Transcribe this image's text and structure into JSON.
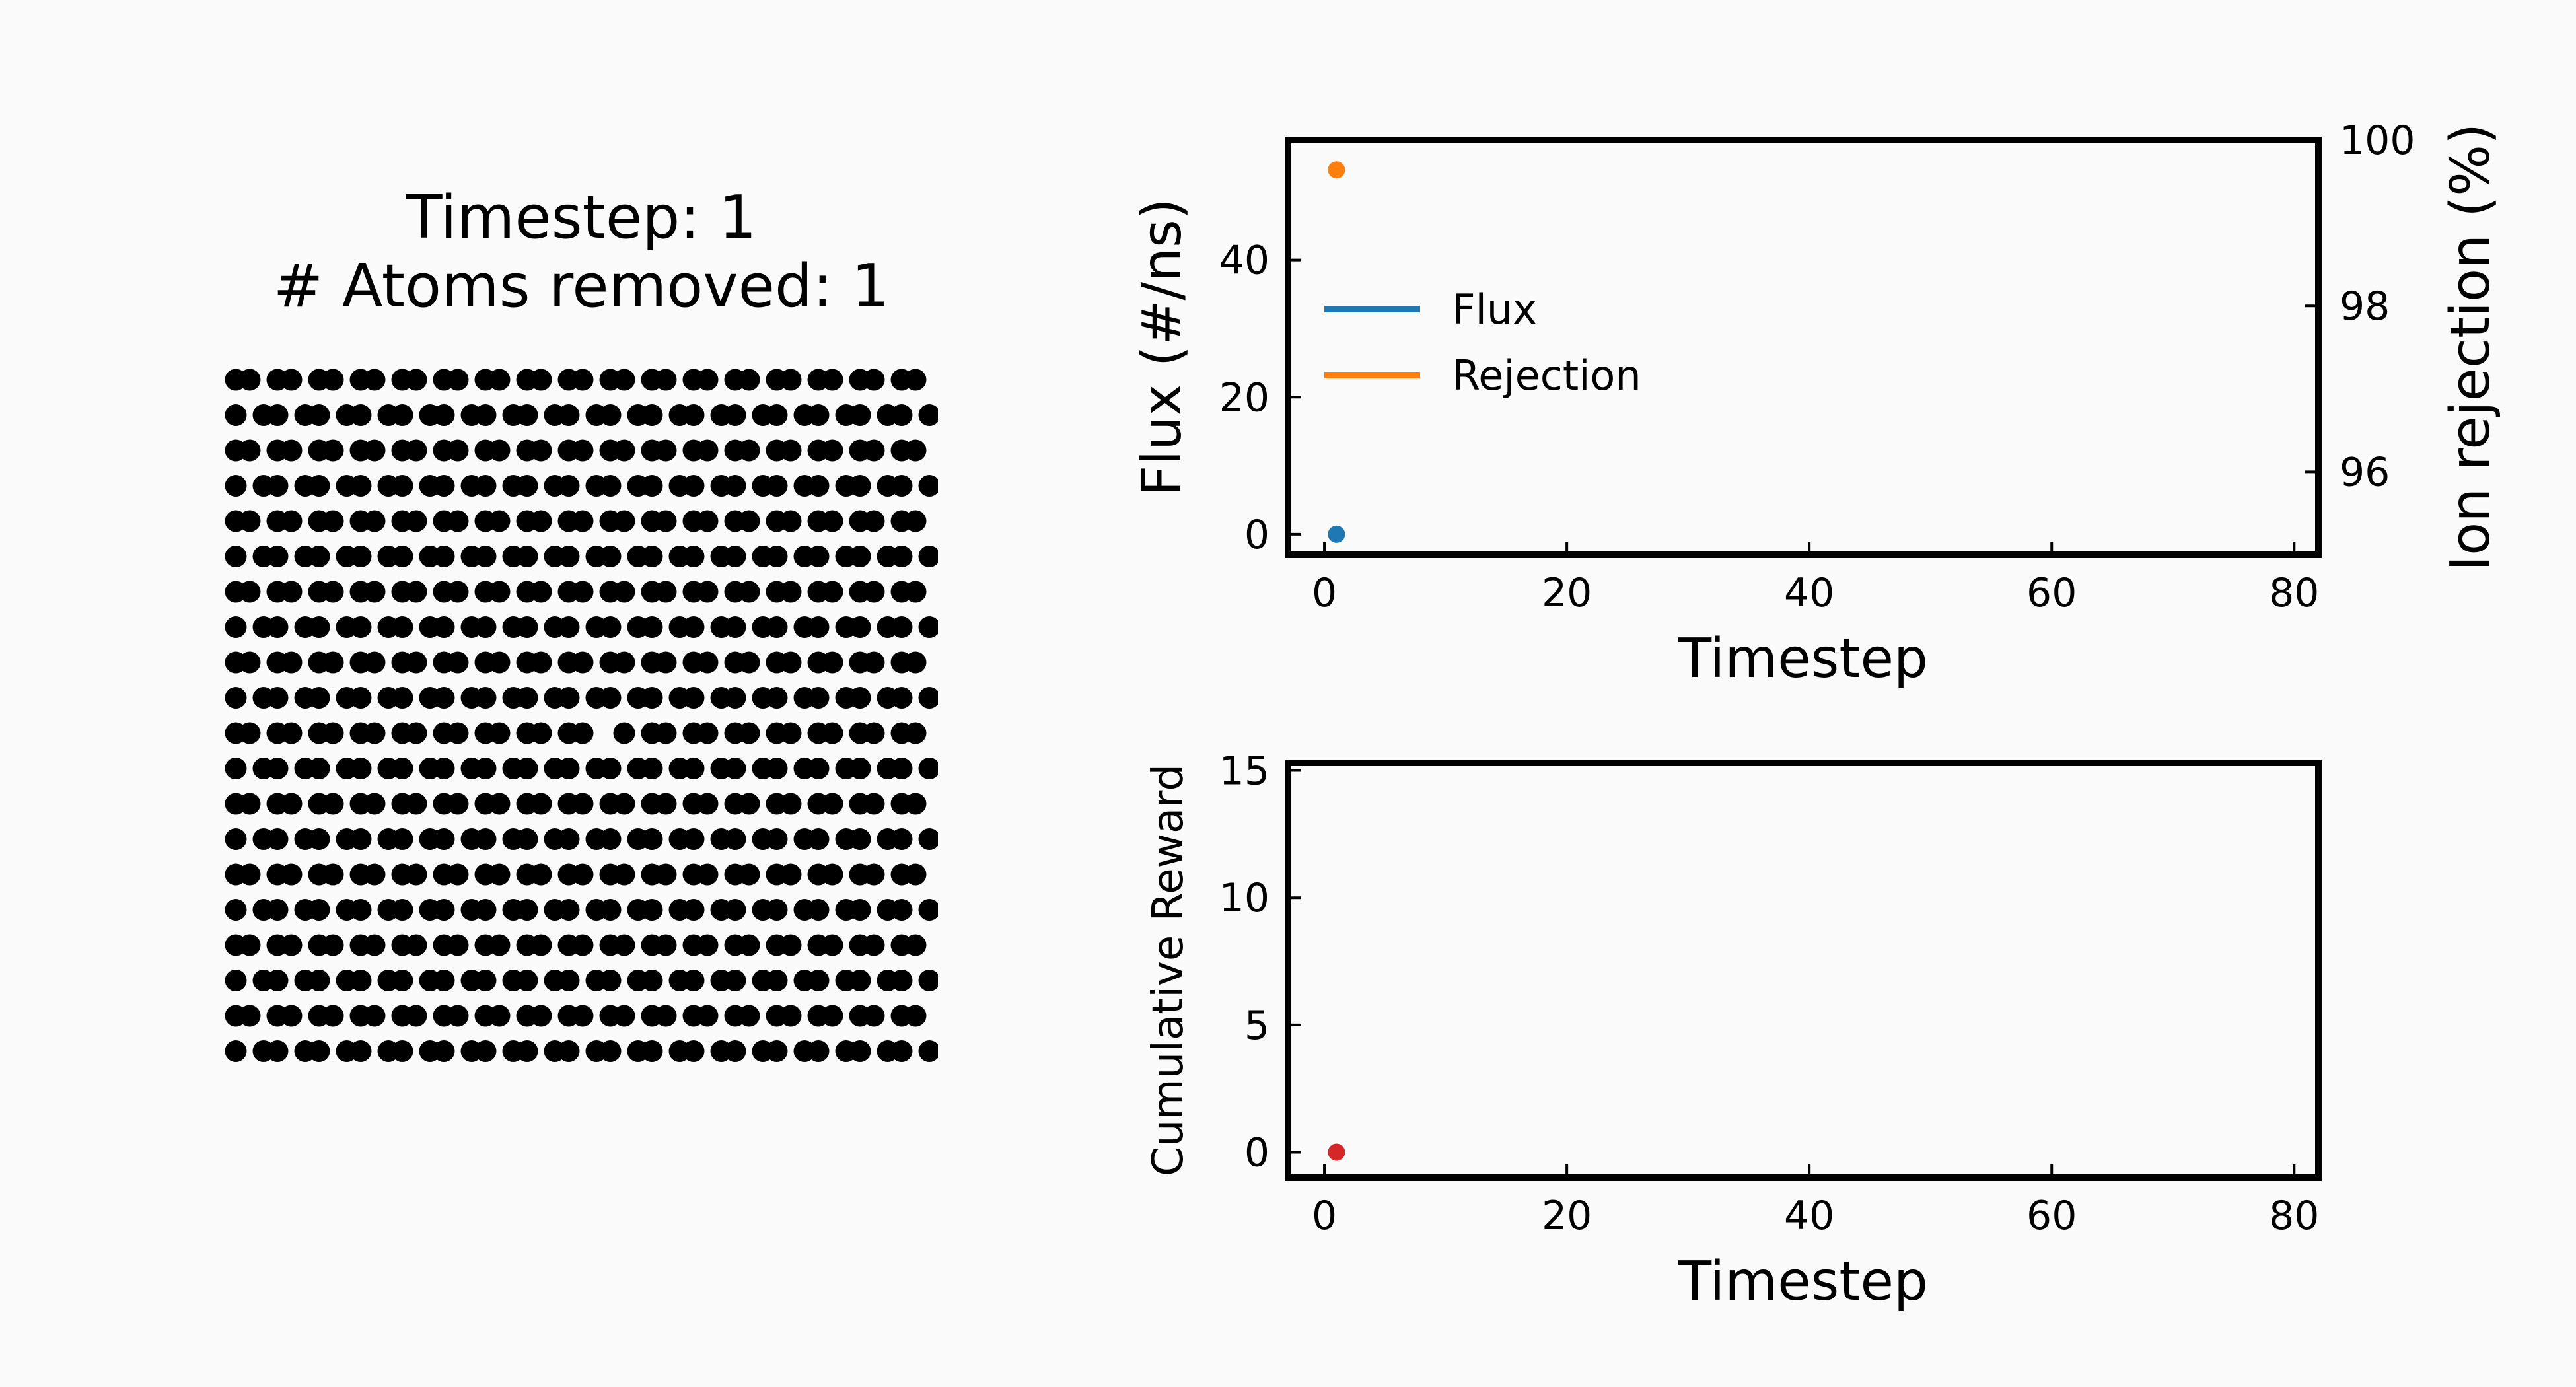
{
  "lattice": {
    "title_line1": "Timestep: 1",
    "title_line2": "# Atoms removed: 1",
    "atom_color": "#000000"
  },
  "chart_data": [
    {
      "type": "scatter",
      "title": "",
      "xlabel": "Timestep",
      "ylabel": "Flux (#/ns)",
      "y2label": "Ion rejection (%)",
      "xlim": [
        -3,
        82
      ],
      "ylim": [
        -3,
        57.5
      ],
      "y2lim": [
        95,
        100
      ],
      "xticks": [
        0,
        20,
        40,
        60,
        80
      ],
      "yticks": [
        0,
        20,
        40
      ],
      "y2ticks": [
        96,
        98,
        100
      ],
      "grid": false,
      "legend": "upper-left",
      "series": [
        {
          "name": "Flux",
          "axis": "left",
          "color": "#1f77b4",
          "x": [
            1
          ],
          "y": [
            0
          ]
        },
        {
          "name": "Rejection",
          "axis": "right",
          "color": "#ff7f0e",
          "x": [
            1
          ],
          "y": [
            99.64
          ]
        }
      ]
    },
    {
      "type": "scatter",
      "title": "",
      "xlabel": "Timestep",
      "ylabel": "Cumulative Reward",
      "xlim": [
        -3,
        82
      ],
      "ylim": [
        -1,
        15.3
      ],
      "xticks": [
        0,
        20,
        40,
        60,
        80
      ],
      "yticks": [
        0,
        5,
        10,
        15
      ],
      "grid": false,
      "series": [
        {
          "color": "#d62728",
          "x": [
            1
          ],
          "y": [
            0
          ]
        }
      ]
    }
  ]
}
